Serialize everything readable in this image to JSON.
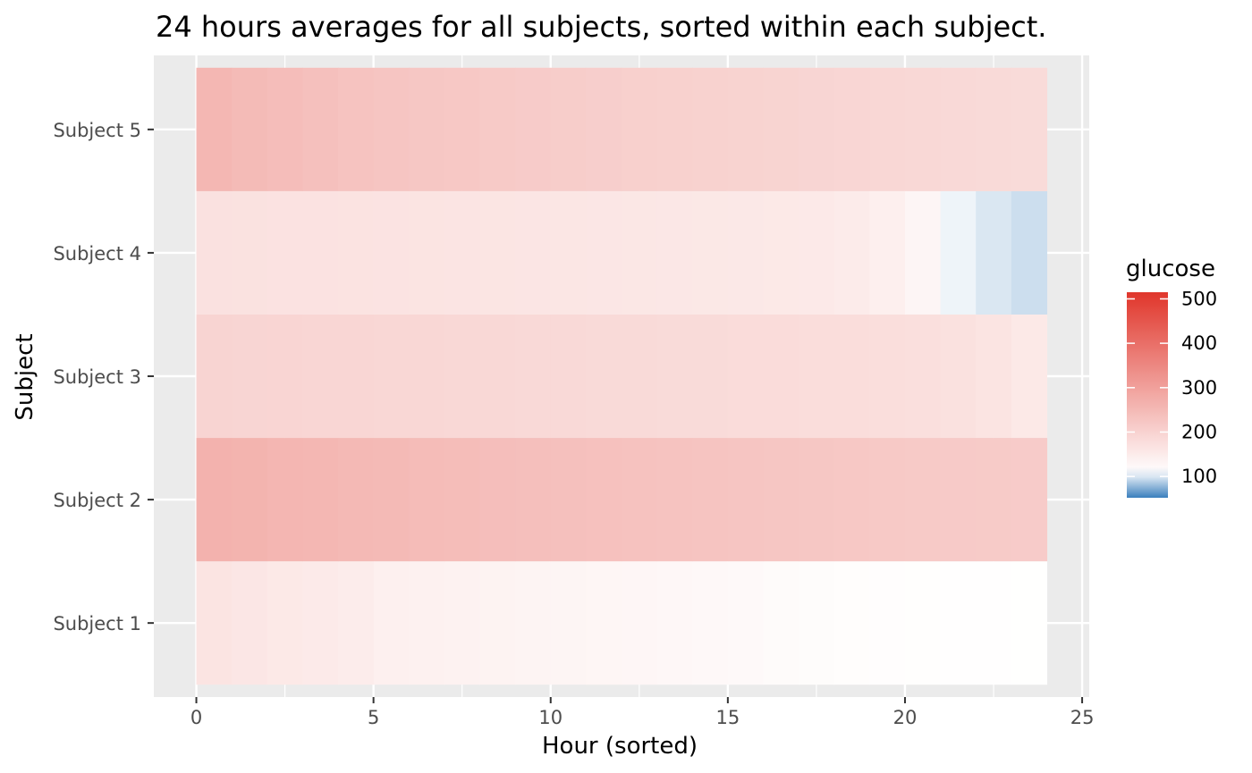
{
  "chart_data": {
    "type": "heatmap",
    "title": "24 hours averages for all subjects, sorted within each subject.",
    "xlabel": "Hour (sorted)",
    "ylabel": "Subject",
    "xlim": [
      -1.2,
      25.2
    ],
    "xticks": [
      0,
      5,
      10,
      15,
      20,
      25
    ],
    "xtick_labels": [
      "0",
      "5",
      "10",
      "15",
      "20",
      "25"
    ],
    "grid": true,
    "legend_placement": "right",
    "subjects": [
      "Subject 1",
      "Subject 2",
      "Subject 3",
      "Subject 4",
      "Subject 5"
    ],
    "hours": [
      0,
      1,
      2,
      3,
      4,
      5,
      6,
      7,
      8,
      9,
      10,
      11,
      12,
      13,
      14,
      15,
      16,
      17,
      18,
      19,
      20,
      21,
      22,
      23
    ],
    "values": [
      [
        165,
        160,
        155,
        152,
        148,
        140,
        138,
        136,
        135,
        133,
        131,
        129,
        128,
        126,
        124,
        122,
        119,
        117,
        115,
        114,
        113,
        112,
        112,
        111
      ],
      [
        265,
        262,
        258,
        255,
        252,
        249,
        246,
        243,
        240,
        238,
        236,
        234,
        232,
        230,
        228,
        226,
        224,
        222,
        220,
        219,
        217,
        216,
        215,
        214
      ],
      [
        196,
        195,
        194,
        193,
        192,
        191,
        190,
        189,
        188,
        187,
        186,
        185,
        184,
        183,
        182,
        181,
        180,
        179,
        178,
        176,
        174,
        171,
        165,
        155
      ],
      [
        170,
        169,
        168,
        168,
        167,
        166,
        165,
        164,
        163,
        162,
        161,
        160,
        159,
        158,
        157,
        156,
        155,
        154,
        150,
        142,
        130,
        105,
        99,
        95
      ],
      [
        255,
        248,
        242,
        236,
        231,
        227,
        223,
        220,
        217,
        214,
        211,
        208,
        205,
        203,
        201,
        199,
        197,
        195,
        193,
        191,
        189,
        187,
        185,
        183
      ]
    ],
    "legend": {
      "title": "glucose",
      "breaks": [
        100,
        200,
        300,
        400,
        500
      ],
      "labels": [
        "100",
        "200",
        "300",
        "400",
        "500"
      ],
      "limits": [
        52,
        515
      ],
      "low_color": "#3a7fbd",
      "mid_color": "#ffffff",
      "midpoint": 110,
      "high_color": "#e0362b"
    },
    "panel_background": "#ebebeb",
    "grid_color": "#ffffff"
  }
}
